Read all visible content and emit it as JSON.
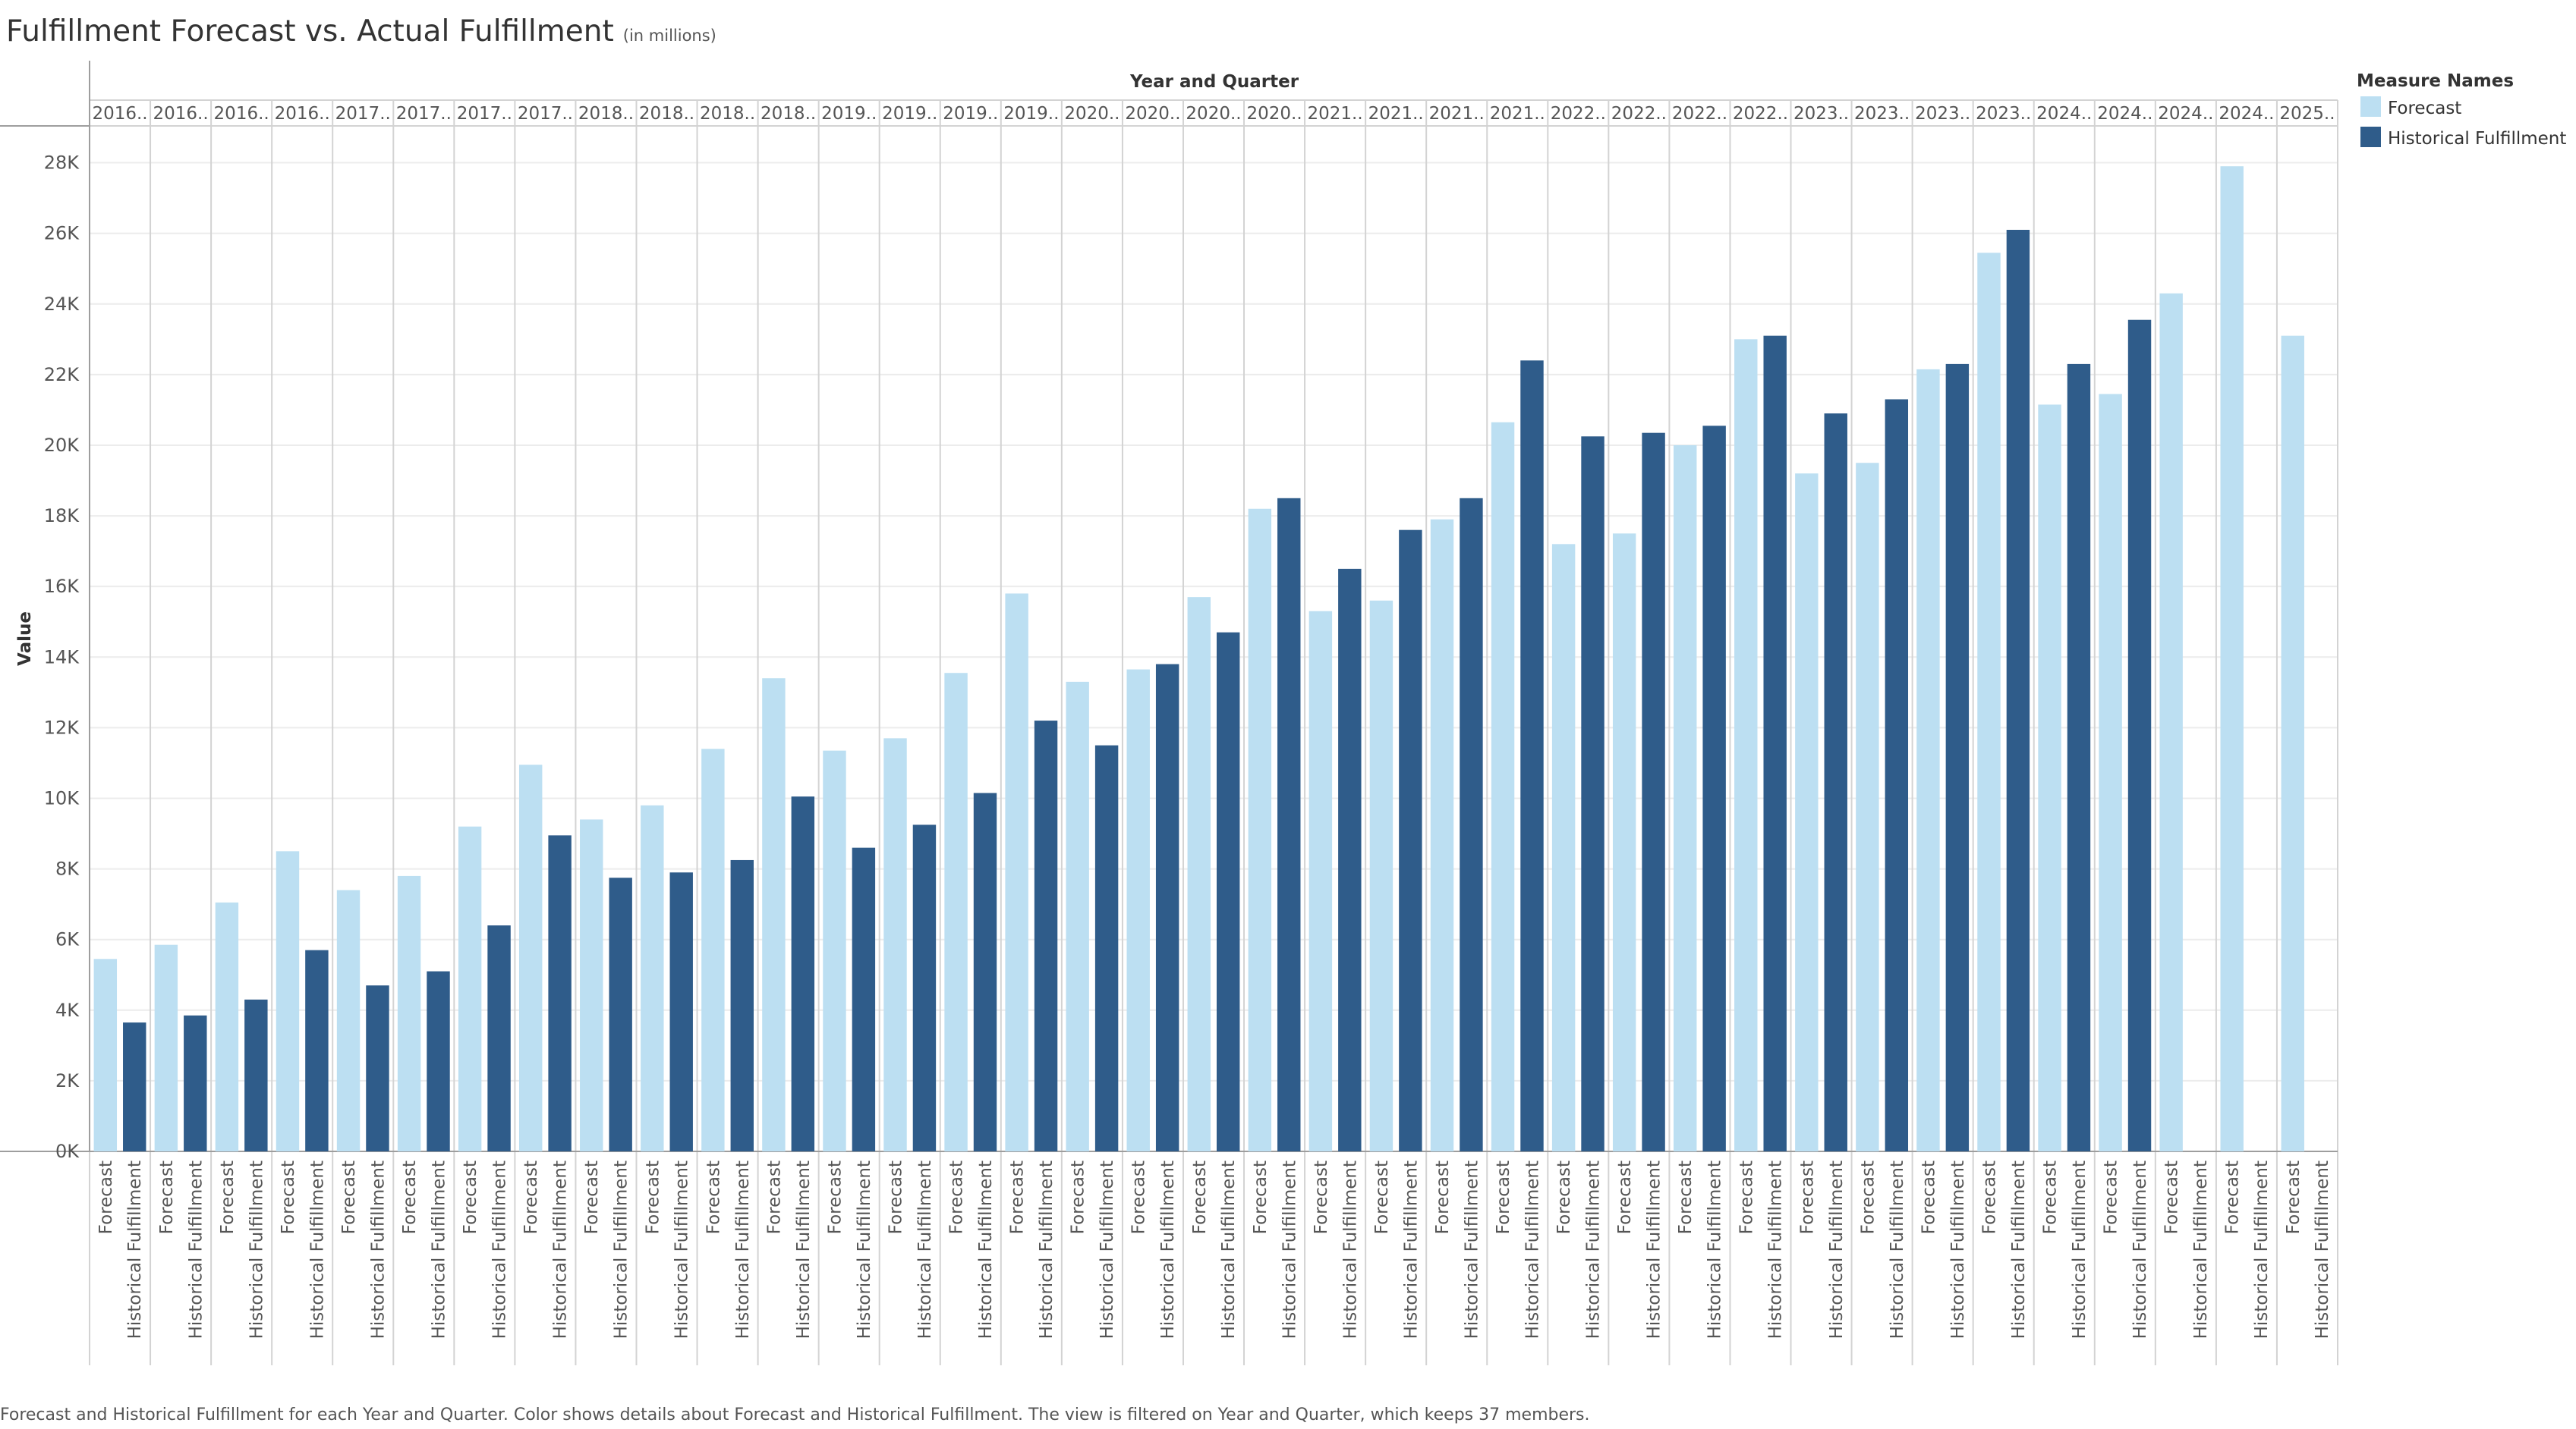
{
  "header": {
    "title": "Fulfillment Forecast vs. Actual Fulfillment",
    "subtitle": "(in millions)"
  },
  "colors": {
    "forecast": "#bcdff2",
    "historical": "#2f5c8a",
    "grid": "#ececec",
    "divider": "#d3d3d3",
    "axis": "#9e9e9e"
  },
  "chart_data": {
    "type": "bar",
    "title": "Fulfillment Forecast vs. Actual Fulfillment",
    "column_header": "Year and Quarter",
    "ylabel": "Value",
    "ylim": [
      0,
      29000
    ],
    "y_ticks": [
      0,
      2000,
      4000,
      6000,
      8000,
      10000,
      12000,
      14000,
      16000,
      18000,
      20000,
      22000,
      24000,
      26000,
      28000
    ],
    "y_tick_labels": [
      "0K",
      "2K",
      "4K",
      "6K",
      "8K",
      "10K",
      "12K",
      "14K",
      "16K",
      "18K",
      "20K",
      "22K",
      "24K",
      "26K",
      "28K"
    ],
    "grid": true,
    "legend": {
      "title": "Measure Names",
      "position": "top-right",
      "items": [
        "Forecast",
        "Historical Fulfillment"
      ]
    },
    "categories": [
      "2016..",
      "2016..",
      "2016..",
      "2016..",
      "2017..",
      "2017..",
      "2017..",
      "2017..",
      "2018..",
      "2018..",
      "2018..",
      "2018..",
      "2019..",
      "2019..",
      "2019..",
      "2019..",
      "2020..",
      "2020..",
      "2020..",
      "2020..",
      "2021..",
      "2021..",
      "2021..",
      "2021..",
      "2022..",
      "2022..",
      "2022..",
      "2022..",
      "2023..",
      "2023..",
      "2023..",
      "2023..",
      "2024..",
      "2024..",
      "2024..",
      "2024..",
      "2025.."
    ],
    "sub_categories": [
      "Forecast",
      "Historical Fulfillment"
    ],
    "series": [
      {
        "name": "Forecast",
        "values": [
          5450,
          5850,
          7050,
          8500,
          7400,
          7800,
          9200,
          10950,
          9400,
          9800,
          11400,
          13400,
          11350,
          11700,
          13550,
          15800,
          13300,
          13650,
          15700,
          18200,
          15300,
          15600,
          17900,
          20650,
          17200,
          17500,
          20000,
          23000,
          19200,
          19500,
          22150,
          25450,
          21150,
          21450,
          24300,
          27900,
          23100
        ]
      },
      {
        "name": "Historical Fulfillment",
        "values": [
          3650,
          3850,
          4300,
          5700,
          4700,
          5100,
          6400,
          8950,
          7750,
          7900,
          8250,
          10050,
          8600,
          9250,
          10150,
          12200,
          11500,
          13800,
          14700,
          18500,
          16500,
          17600,
          18500,
          22400,
          20250,
          20350,
          20550,
          23100,
          20900,
          21300,
          22300,
          26100,
          22300,
          23550,
          null,
          null,
          null
        ]
      }
    ]
  },
  "caption": "Forecast and Historical Fulfillment for each Year and Quarter.  Color shows details about Forecast and Historical Fulfillment. The view is filtered on Year and Quarter, which keeps 37 members."
}
